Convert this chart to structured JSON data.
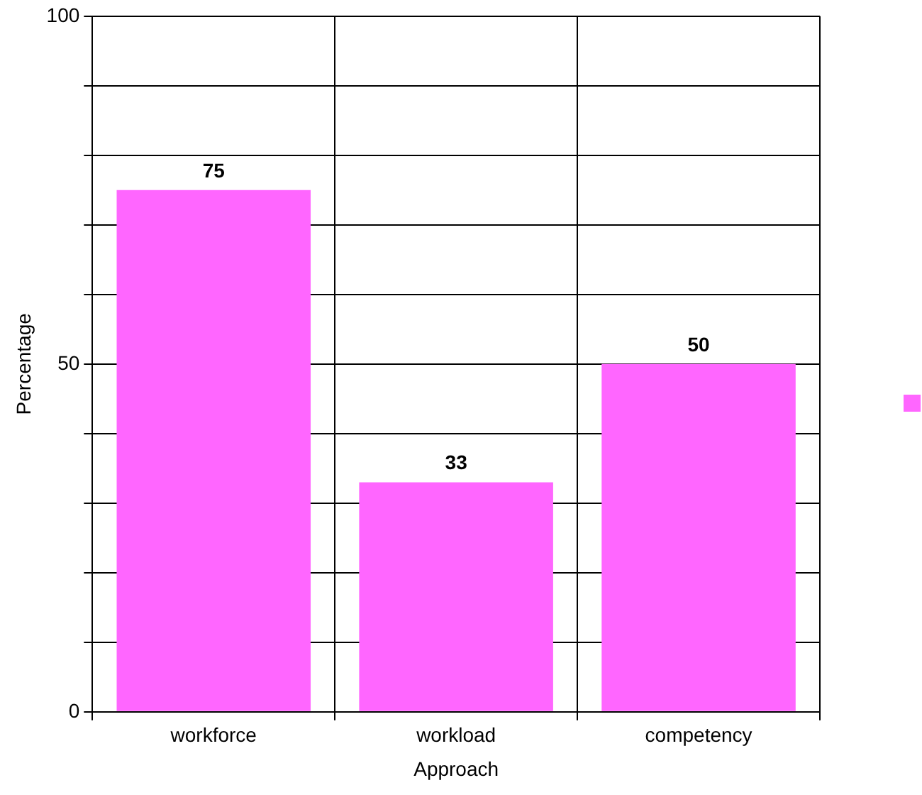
{
  "chart_data": {
    "type": "bar",
    "xlabel": "Approach",
    "ylabel": "Percentage",
    "categories": [
      "workforce",
      "workload",
      "competency"
    ],
    "series": [
      {
        "color": "#ff66ff",
        "values": [
          75,
          33,
          50
        ]
      }
    ],
    "ylim": [
      0,
      100
    ],
    "yticks": [
      0,
      {
        "value": 10,
        "label": null
      },
      {
        "value": 20,
        "label": null
      },
      {
        "value": 30,
        "label": null
      },
      {
        "value": 40,
        "label": null
      },
      50,
      {
        "value": 60,
        "label": null
      },
      {
        "value": 70,
        "label": null
      },
      {
        "value": 80,
        "label": null
      },
      {
        "value": 90,
        "label": null
      },
      100
    ],
    "grid": true,
    "data_labels": true
  }
}
